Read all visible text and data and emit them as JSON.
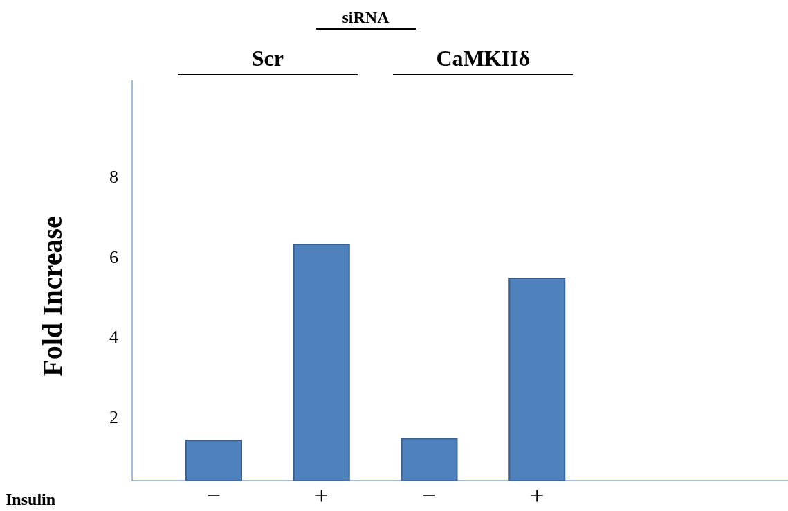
{
  "chart_data": {
    "type": "bar",
    "title": "siRNA",
    "annotations": [
      "Scr",
      "CaMKIIδ"
    ],
    "xlabel": "Insulin",
    "ylabel": "Fold Increase",
    "categories": [
      "−",
      "+",
      "−",
      "+"
    ],
    "values": [
      1.4,
      6.3,
      1.45,
      5.45
    ],
    "color": "#4f81bd",
    "ylim": [
      0.4,
      10.4
    ],
    "yticks": [
      2,
      4,
      6,
      8
    ],
    "grid": false
  }
}
